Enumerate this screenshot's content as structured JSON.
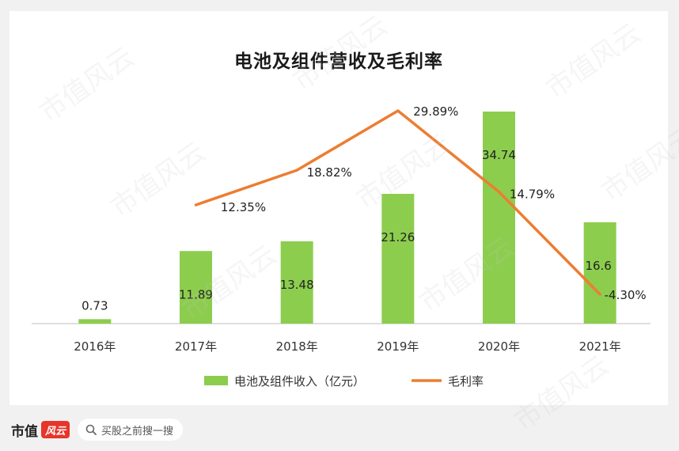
{
  "chart_data": {
    "type": "bar",
    "title": "电池及组件营收及毛利率",
    "categories": [
      "2016年",
      "2017年",
      "2018年",
      "2019年",
      "2020年",
      "2021年"
    ],
    "series": [
      {
        "name": "电池及组件收入（亿元）",
        "type": "bar",
        "color": "#8ccd4e",
        "values": [
          0.73,
          11.89,
          13.48,
          21.26,
          34.74,
          16.6
        ],
        "labels": [
          "0.73",
          "11.89",
          "13.48",
          "21.26",
          "34.74",
          "16.6"
        ]
      },
      {
        "name": "毛利率",
        "type": "line",
        "color": "#ed7d31",
        "values": [
          null,
          12.35,
          18.82,
          29.89,
          14.79,
          -4.3
        ],
        "labels": [
          "",
          "12.35%",
          "18.82%",
          "29.89%",
          "14.79%",
          "-4.30%"
        ]
      }
    ],
    "legend": "bottom",
    "grid": false
  },
  "watermark": "市值风云",
  "footer": {
    "brand": "市值",
    "logo_text": "风云",
    "search_text": "买股之前搜一搜"
  }
}
